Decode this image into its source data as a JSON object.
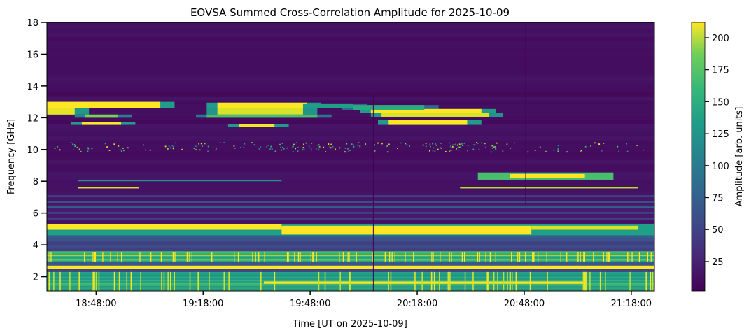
{
  "chart_data": {
    "type": "heatmap",
    "title": "EOVSA Summed Cross-Correlation Amplitude for 2025-10-09",
    "xlabel": "Time [UT on 2025-10-09]",
    "ylabel": "Frequency [GHz]",
    "colorbar_label": "Amplitude [arb. units]",
    "colormap": "viridis",
    "x_ticks": [
      "18:48:00",
      "19:18:00",
      "19:48:00",
      "20:18:00",
      "20:48:00",
      "21:18:00"
    ],
    "x_tick_minutes": [
      48,
      78,
      108,
      138,
      168,
      198
    ],
    "xlim_minutes_after_1800": [
      34.2,
      204.5
    ],
    "y_ticks": [
      2,
      4,
      6,
      8,
      10,
      12,
      14,
      16,
      18
    ],
    "ylim": [
      1.1,
      18
    ],
    "colorbar_ticks": [
      25,
      50,
      75,
      100,
      125,
      150,
      175,
      200
    ],
    "colorbar_range": [
      2,
      212
    ],
    "grid": false,
    "features": [
      {
        "name": "band-12-13GHz",
        "freq_range": [
          11.5,
          13.0
        ],
        "time_range": [
          34.2,
          160
        ],
        "amplitude": 210
      },
      {
        "name": "rfi-speckle-10GHz",
        "freq_range": [
          9.8,
          10.4
        ],
        "time_range": [
          36,
          204
        ],
        "amplitude": 120
      },
      {
        "name": "burst-8.3GHz",
        "freq_range": [
          8.1,
          8.5
        ],
        "time_range": [
          155,
          193
        ],
        "amplitude": 210
      },
      {
        "name": "line-7.6GHz",
        "freq_range": [
          7.5,
          7.7
        ],
        "time_range": [
          40,
          204
        ],
        "amplitude": 190
      },
      {
        "name": "band-5GHz",
        "freq_range": [
          4.6,
          5.3
        ],
        "time_range": [
          34.2,
          204.5
        ],
        "amplitude": 212
      },
      {
        "name": "band-3GHz",
        "freq_range": [
          2.9,
          3.5
        ],
        "time_range": [
          34.2,
          204.5
        ],
        "amplitude": 180
      },
      {
        "name": "band-2.6GHz",
        "freq_range": [
          2.5,
          2.7
        ],
        "time_range": [
          34.2,
          204.5
        ],
        "amplitude": 212
      },
      {
        "name": "low-band-1-2GHz",
        "freq_range": [
          1.1,
          2.3
        ],
        "time_range": [
          34.2,
          204.5
        ],
        "amplitude": 140
      }
    ]
  }
}
